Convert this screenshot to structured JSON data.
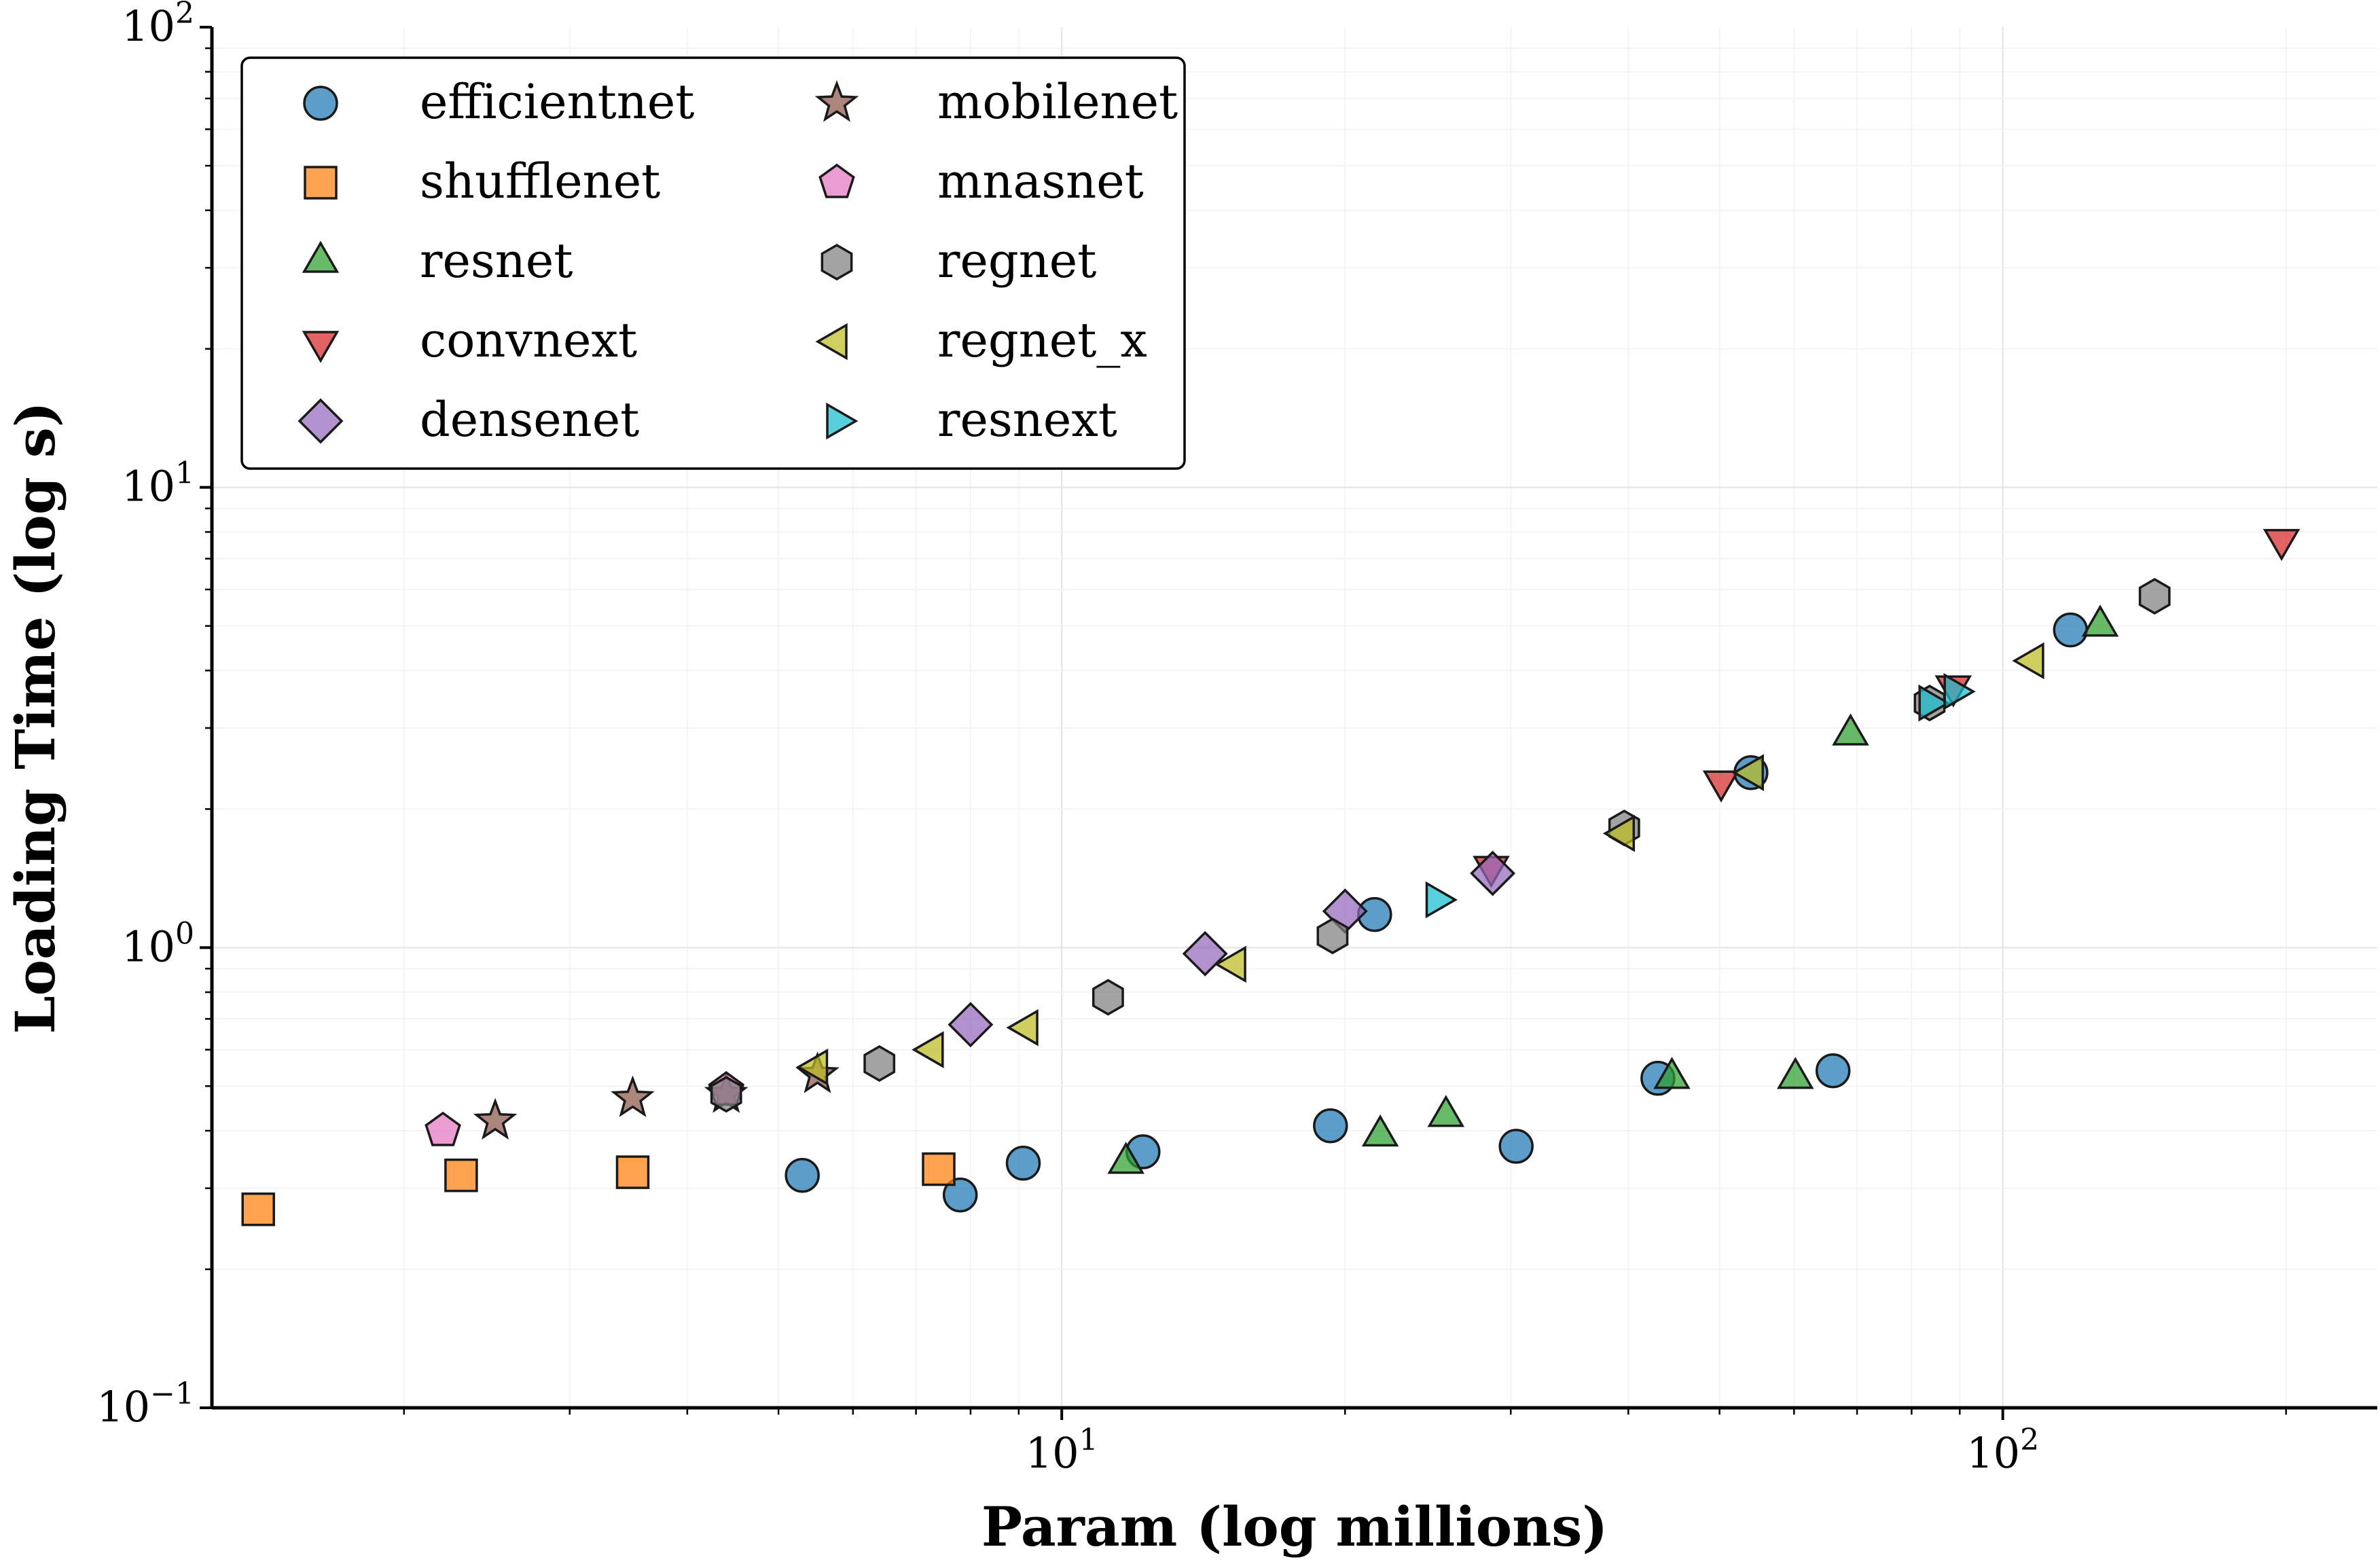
{
  "chart_data": {
    "type": "scatter",
    "title": "",
    "xlabel": "Param (log millions)",
    "ylabel": "Loading Time (log s)",
    "xscale": "log",
    "yscale": "log",
    "xlim": [
      1.25,
      250
    ],
    "ylim": [
      0.1,
      100
    ],
    "grid": true,
    "legend_position": "top-left",
    "x_ticks": [
      {
        "value": 10,
        "base": "10",
        "exp": "1"
      },
      {
        "value": 100,
        "base": "10",
        "exp": "2"
      }
    ],
    "y_ticks": [
      {
        "value": 0.1,
        "base": "10",
        "exp": "−1"
      },
      {
        "value": 1,
        "base": "10",
        "exp": "0"
      },
      {
        "value": 10,
        "base": "10",
        "exp": "1"
      },
      {
        "value": 100,
        "base": "10",
        "exp": "2"
      }
    ],
    "series": [
      {
        "name": "efficientnet",
        "marker": "circle",
        "color": "#1f77b4",
        "points": [
          [
            5.3,
            0.32
          ],
          [
            7.8,
            0.29
          ],
          [
            9.1,
            0.34
          ],
          [
            12.2,
            0.36
          ],
          [
            19.3,
            0.41
          ],
          [
            21.5,
            1.18
          ],
          [
            30.4,
            0.37
          ],
          [
            43,
            0.52
          ],
          [
            54,
            2.4
          ],
          [
            66,
            0.54
          ],
          [
            118,
            4.9
          ]
        ]
      },
      {
        "name": "shufflenet",
        "marker": "square",
        "color": "#ff7f0e",
        "points": [
          [
            1.4,
            0.27
          ],
          [
            2.3,
            0.32
          ],
          [
            3.5,
            0.325
          ],
          [
            7.4,
            0.33
          ]
        ]
      },
      {
        "name": "resnet",
        "marker": "triangle-up",
        "color": "#2ca02c",
        "points": [
          [
            11.7,
            0.34
          ],
          [
            21.8,
            0.39
          ],
          [
            25.6,
            0.43
          ],
          [
            44.5,
            0.52
          ],
          [
            60.2,
            0.52
          ],
          [
            68.9,
            2.9
          ],
          [
            126.9,
            5.0
          ]
        ]
      },
      {
        "name": "convnext",
        "marker": "triangle-down",
        "color": "#d62728",
        "points": [
          [
            28.6,
            1.5
          ],
          [
            50.2,
            2.3
          ],
          [
            88.6,
            3.7
          ],
          [
            197.8,
            7.7
          ]
        ]
      },
      {
        "name": "densenet",
        "marker": "diamond",
        "color": "#9467bd",
        "points": [
          [
            8,
            0.68
          ],
          [
            14.2,
            0.97
          ],
          [
            20,
            1.2
          ],
          [
            28.7,
            1.45
          ]
        ]
      },
      {
        "name": "mobilenet",
        "marker": "star",
        "color": "#8c564b",
        "points": [
          [
            2.5,
            0.42
          ],
          [
            3.5,
            0.47
          ],
          [
            4.4,
            0.48
          ],
          [
            5.5,
            0.53
          ]
        ]
      },
      {
        "name": "mnasnet",
        "marker": "pentagon",
        "color": "#e377c2",
        "points": [
          [
            2.2,
            0.4
          ],
          [
            4.4,
            0.49
          ]
        ]
      },
      {
        "name": "regnet",
        "marker": "hexagon",
        "color": "#7f7f7f",
        "points": [
          [
            4.4,
            0.48
          ],
          [
            6.4,
            0.56
          ],
          [
            11.2,
            0.78
          ],
          [
            19.4,
            1.06
          ],
          [
            39.6,
            1.82
          ],
          [
            83.6,
            3.4
          ],
          [
            145,
            5.8
          ]
        ]
      },
      {
        "name": "regnet_x",
        "marker": "triangle-left",
        "color": "#bcbd22",
        "points": [
          [
            5.5,
            0.55
          ],
          [
            7.3,
            0.6
          ],
          [
            9.2,
            0.67
          ],
          [
            15.3,
            0.92
          ],
          [
            39.6,
            1.77
          ],
          [
            54.3,
            2.4
          ],
          [
            107.8,
            4.2
          ]
        ]
      },
      {
        "name": "resnext",
        "marker": "triangle-right",
        "color": "#17becf",
        "points": [
          [
            25,
            1.27
          ],
          [
            83.5,
            3.4
          ],
          [
            88.8,
            3.6
          ]
        ]
      }
    ],
    "legend_labels": {
      "efficientnet": "efficientnet",
      "shufflenet": "shufflenet",
      "resnet": "resnet",
      "convnext": "convnext",
      "densenet": "densenet",
      "mobilenet": "mobilenet",
      "mnasnet": "mnasnet",
      "regnet": "regnet",
      "regnet_x": "regnet_x",
      "resnext": "resnext"
    }
  }
}
